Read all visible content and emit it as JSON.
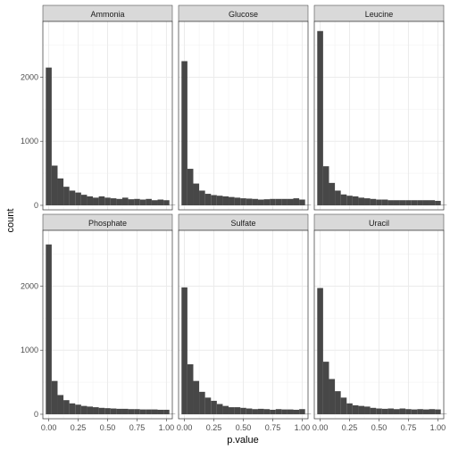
{
  "chart_data": {
    "type": "bar",
    "facet_layout": {
      "rows": 2,
      "cols": 3
    },
    "xlabel": "p.value",
    "ylabel": "count",
    "xlim": [
      -0.05,
      1.05
    ],
    "ylim": [
      -70,
      2870
    ],
    "x_ticks": [
      0,
      0.25,
      0.5,
      0.75,
      1
    ],
    "x_tick_labels": [
      "0.00",
      "0.25",
      "0.50",
      "0.75",
      "1.00"
    ],
    "y_ticks": [
      0,
      1000,
      2000
    ],
    "y_tick_labels": [
      "0",
      "1000",
      "2000"
    ],
    "bin_width": 0.05,
    "bin_starts": [
      -0.025,
      0.025,
      0.075,
      0.125,
      0.175,
      0.225,
      0.275,
      0.325,
      0.375,
      0.425,
      0.475,
      0.525,
      0.575,
      0.625,
      0.675,
      0.725,
      0.775,
      0.825,
      0.875,
      0.925,
      0.975,
      1.025
    ],
    "grid": true,
    "bar_color": "#474747",
    "panels": [
      {
        "name": "Ammonia",
        "values": [
          2150,
          620,
          420,
          290,
          230,
          200,
          165,
          140,
          120,
          140,
          120,
          110,
          100,
          120,
          95,
          100,
          90,
          100,
          80,
          90,
          80,
          5
        ]
      },
      {
        "name": "Glucose",
        "values": [
          2250,
          570,
          340,
          230,
          180,
          160,
          150,
          140,
          130,
          120,
          110,
          105,
          100,
          90,
          95,
          100,
          100,
          100,
          100,
          110,
          90,
          5
        ]
      },
      {
        "name": "Leucine",
        "values": [
          2720,
          610,
          350,
          230,
          170,
          150,
          140,
          120,
          110,
          100,
          90,
          90,
          80,
          80,
          80,
          80,
          80,
          80,
          80,
          80,
          70,
          5
        ]
      },
      {
        "name": "Phosphate",
        "values": [
          2650,
          520,
          300,
          220,
          170,
          150,
          130,
          120,
          110,
          100,
          95,
          90,
          85,
          85,
          80,
          80,
          75,
          75,
          75,
          70,
          70,
          5
        ]
      },
      {
        "name": "Sulfate",
        "values": [
          1980,
          780,
          520,
          350,
          260,
          210,
          160,
          130,
          110,
          110,
          100,
          90,
          80,
          85,
          80,
          70,
          80,
          75,
          75,
          70,
          80,
          5
        ]
      },
      {
        "name": "Uracil",
        "values": [
          1970,
          820,
          550,
          360,
          260,
          170,
          140,
          130,
          120,
          100,
          90,
          85,
          90,
          80,
          90,
          80,
          75,
          80,
          75,
          80,
          75,
          5
        ]
      }
    ]
  }
}
